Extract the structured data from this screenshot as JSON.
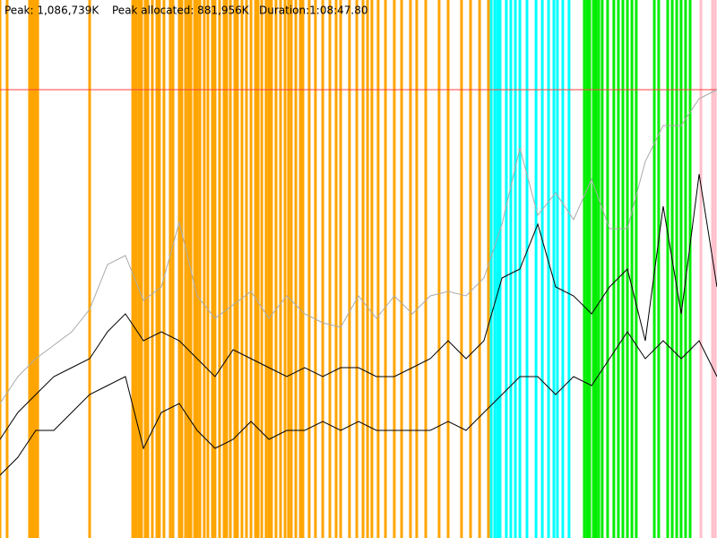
{
  "chart_data": {
    "type": "line",
    "stats": [
      "Peak: 1,086,739K",
      "Peak allocated: 881,956K",
      "Duration:1:08:47.80"
    ],
    "xlim": [
      0,
      4127.8
    ],
    "ylim": [
      0,
      1304100
    ],
    "peak_line": {
      "value": 1086739,
      "color": "#ff4040"
    },
    "events": [
      {
        "color": "#ffa500",
        "x": [
          0,
          41,
          170,
          181,
          191,
          206,
          217,
          516,
          764,
          774,
          784,
          800,
          815,
          836,
          851,
          877,
          903,
          918,
          944,
          980,
          996,
          1032,
          1047,
          1068,
          1084,
          1099,
          1120,
          1135,
          1151,
          1176,
          1197,
          1223,
          1238,
          1264,
          1290,
          1305,
          1326,
          1352,
          1367,
          1393,
          1419,
          1445,
          1471,
          1486,
          1507,
          1532,
          1548,
          1563,
          1589,
          1615,
          1641,
          1661,
          1677,
          1703,
          1729,
          1744,
          1780,
          1816,
          1858,
          1899,
          1935,
          1961,
          2012,
          2054,
          2090,
          2116,
          2141,
          2177,
          2219,
          2270,
          2312,
          2363,
          2399,
          2451,
          2528,
          2580,
          2657,
          2709,
          2761,
          2812
        ]
      },
      {
        "color": "#00ffff",
        "x": [
          2828,
          2848,
          2864,
          2879,
          2915,
          2941,
          2967,
          2993,
          3034,
          3086,
          3122,
          3158,
          3189,
          3209,
          3240,
          3276
        ]
      },
      {
        "color": "#00ee00",
        "x": [
          3364,
          3380,
          3395,
          3416,
          3431,
          3447,
          3467,
          3498,
          3534,
          3560,
          3586,
          3612,
          3638,
          3663,
          3767,
          3792,
          3844,
          3870,
          3896,
          3921,
          3947,
          3973
        ]
      },
      {
        "color": "#ffc0cb",
        "x": [
          4035,
          4102,
          4118
        ]
      }
    ],
    "x": [
      0,
      103,
      206,
      310,
      413,
      516,
      619,
      722,
      826,
      929,
      1032,
      1135,
      1238,
      1342,
      1445,
      1548,
      1651,
      1754,
      1858,
      1961,
      2064,
      2167,
      2270,
      2374,
      2477,
      2580,
      2683,
      2786,
      2890,
      2993,
      3096,
      3199,
      3302,
      3406,
      3509,
      3612,
      3715,
      3818,
      3922,
      4025,
      4127.8
    ],
    "series": [
      {
        "color": "#aaaaaa",
        "values": [
          326025,
          391230,
          434700,
          467303,
          499905,
          554243,
          662918,
          684653,
          575978,
          608580,
          765072,
          586845,
          532508,
          565110,
          597713,
          532508,
          586845,
          543375,
          521640,
          510773,
          586845,
          532508,
          586845,
          543375,
          586845,
          597713,
          586845,
          630315,
          760725,
          945473,
          782460,
          836798,
          771593,
          869400,
          749858,
          749858,
          912870,
          999810,
          999810,
          1065015,
          1086739
        ]
      },
      {
        "color": "#000000",
        "values": [
          239085,
          304290,
          347760,
          391230,
          412965,
          434700,
          499905,
          543375,
          478170,
          499905,
          478170,
          434700,
          391230,
          456435,
          434700,
          412965,
          391230,
          412965,
          391230,
          412965,
          412965,
          391230,
          391230,
          412965,
          434700,
          478170,
          434700,
          478170,
          630315,
          652050,
          760725,
          608580,
          586845,
          543375,
          608580,
          652050,
          478170,
          804195,
          543375,
          881956,
          608580
        ]
      },
      {
        "color": "#000000",
        "values": [
          152145,
          195615,
          260820,
          260820,
          304290,
          347760,
          369495,
          391230,
          217350,
          304290,
          326025,
          260820,
          217350,
          239085,
          282555,
          239085,
          260820,
          260820,
          282555,
          260820,
          282555,
          260820,
          260820,
          260820,
          260820,
          282555,
          260820,
          304290,
          347760,
          391230,
          391230,
          347760,
          391230,
          369495,
          434700,
          499905,
          434700,
          478170,
          434700,
          478170,
          391230
        ]
      }
    ]
  }
}
